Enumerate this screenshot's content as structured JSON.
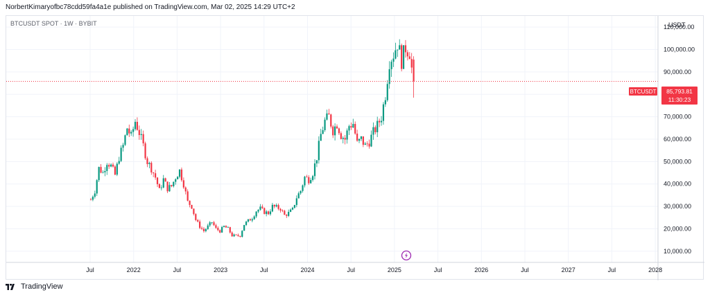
{
  "header": {
    "publish_line": "NorbertKimaryofbc78cdd59fa4a1e published on TradingView.com, Mar 02, 2025 14:29 UTC+2"
  },
  "chart_data": {
    "type": "candlestick",
    "title": "BTCUSDT SPOT · 1W · BYBIT",
    "y_unit": "USDT",
    "ylim": [
      5000,
      115000
    ],
    "y_ticks": [
      10000,
      20000,
      30000,
      40000,
      50000,
      60000,
      70000,
      80000,
      90000,
      100000,
      110000
    ],
    "y_tick_labels": [
      "10,000.00",
      "20,000.00",
      "30,000.00",
      "40,000.00",
      "50,000.00",
      "60,000.00",
      "70,000.00",
      "",
      "90,000.00",
      "100,000.00",
      "110,000.00"
    ],
    "x_ticks": [
      "Jul",
      "2022",
      "Jul",
      "2023",
      "Jul",
      "2024",
      "Jul",
      "2025",
      "Jul",
      "2026",
      "Jul",
      "2027",
      "Jul",
      "2028"
    ],
    "grid": true,
    "current_price": {
      "symbol": "BTCUSDT",
      "value": 85793.81,
      "label": "85,793.81",
      "countdown": "11:30:23",
      "color": "#f23645"
    },
    "colors": {
      "up": "#089981",
      "down": "#f23645"
    },
    "path_points": [
      [
        0,
        33000
      ],
      [
        2,
        37000
      ],
      [
        4,
        47000
      ],
      [
        6,
        45000
      ],
      [
        8,
        50000
      ],
      [
        10,
        48000
      ],
      [
        12,
        44000
      ],
      [
        14,
        52000
      ],
      [
        16,
        57000
      ],
      [
        18,
        65000
      ],
      [
        20,
        61000
      ],
      [
        22,
        68000
      ],
      [
        24,
        63000
      ],
      [
        26,
        57000
      ],
      [
        28,
        50000
      ],
      [
        30,
        47000
      ],
      [
        32,
        43000
      ],
      [
        34,
        37000
      ],
      [
        36,
        42000
      ],
      [
        38,
        38000
      ],
      [
        40,
        39000
      ],
      [
        42,
        43000
      ],
      [
        44,
        46000
      ],
      [
        46,
        40000
      ],
      [
        48,
        32000
      ],
      [
        50,
        30000
      ],
      [
        52,
        24000
      ],
      [
        54,
        21000
      ],
      [
        56,
        19000
      ],
      [
        58,
        21000
      ],
      [
        60,
        23000
      ],
      [
        62,
        20000
      ],
      [
        64,
        19000
      ],
      [
        66,
        21000
      ],
      [
        68,
        20000
      ],
      [
        70,
        17000
      ],
      [
        72,
        16800
      ],
      [
        74,
        17000
      ],
      [
        76,
        22000
      ],
      [
        78,
        23500
      ],
      [
        80,
        25000
      ],
      [
        82,
        28000
      ],
      [
        84,
        29000
      ],
      [
        86,
        27500
      ],
      [
        88,
        27000
      ],
      [
        90,
        30000
      ],
      [
        92,
        29500
      ],
      [
        94,
        29000
      ],
      [
        96,
        26000
      ],
      [
        98,
        27000
      ],
      [
        100,
        28500
      ],
      [
        102,
        34000
      ],
      [
        104,
        37000
      ],
      [
        106,
        43000
      ],
      [
        108,
        42000
      ],
      [
        110,
        45000
      ],
      [
        112,
        52000
      ],
      [
        114,
        62000
      ],
      [
        116,
        68000
      ],
      [
        118,
        70000
      ],
      [
        120,
        64000
      ],
      [
        122,
        67000
      ],
      [
        124,
        62000
      ],
      [
        126,
        60000
      ],
      [
        128,
        66000
      ],
      [
        130,
        67000
      ],
      [
        132,
        58000
      ],
      [
        134,
        60000
      ],
      [
        136,
        57000
      ],
      [
        138,
        59000
      ],
      [
        140,
        63000
      ],
      [
        142,
        66000
      ],
      [
        144,
        70000
      ],
      [
        146,
        80000
      ],
      [
        148,
        95000
      ],
      [
        150,
        98000
      ],
      [
        152,
        103000
      ],
      [
        154,
        95000
      ],
      [
        156,
        101000
      ],
      [
        158,
        99000
      ],
      [
        160,
        84000
      ]
    ]
  },
  "branding": {
    "logo_text": "TradingView",
    "flash_icon": "lightning-icon"
  }
}
